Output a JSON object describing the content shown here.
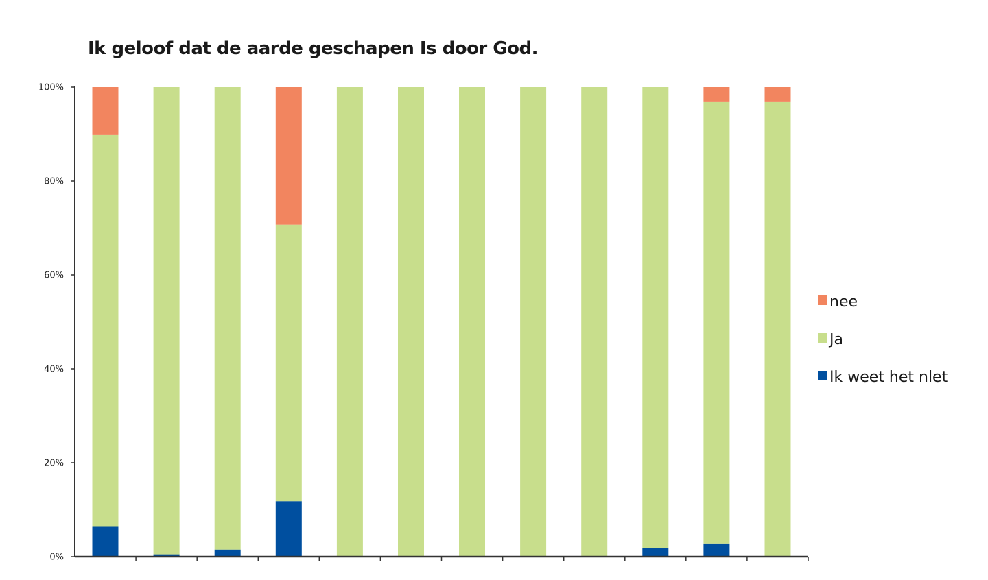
{
  "chart_data": {
    "type": "bar",
    "stacked": true,
    "title": "Ik geloof dat de aarde geschapen Is door God.",
    "xlabel": "",
    "ylabel": "",
    "ylim": [
      0,
      100
    ],
    "yticks": [
      "0%",
      "20%",
      "40%",
      "60%",
      "80%",
      "100%"
    ],
    "y_tick_values": [
      0,
      20,
      40,
      60,
      80,
      100
    ],
    "categories": [
      "",
      "",
      "",
      "",
      "",
      "",
      "",
      "",
      "",
      "",
      "",
      ""
    ],
    "legend_position": "right",
    "grid": false,
    "series": [
      {
        "name": "Ik weet het nlet",
        "color": "#004f9f",
        "values": [
          6.5,
          0.5,
          1.5,
          11.8,
          0,
          0,
          0,
          0,
          0,
          1.8,
          2.8,
          0
        ]
      },
      {
        "name": "Ja",
        "color": "#c8de8c",
        "values": [
          83.3,
          99.5,
          98.5,
          58.9,
          100,
          100,
          100,
          100,
          100,
          98.2,
          94.0,
          96.8
        ]
      },
      {
        "name": "nee",
        "color": "#f2855f",
        "values": [
          10.2,
          0,
          0,
          29.3,
          0,
          0,
          0,
          0,
          0,
          0,
          3.2,
          3.2
        ]
      }
    ],
    "legend_order": [
      "nee",
      "Ja",
      "Ik weet het nlet"
    ]
  }
}
